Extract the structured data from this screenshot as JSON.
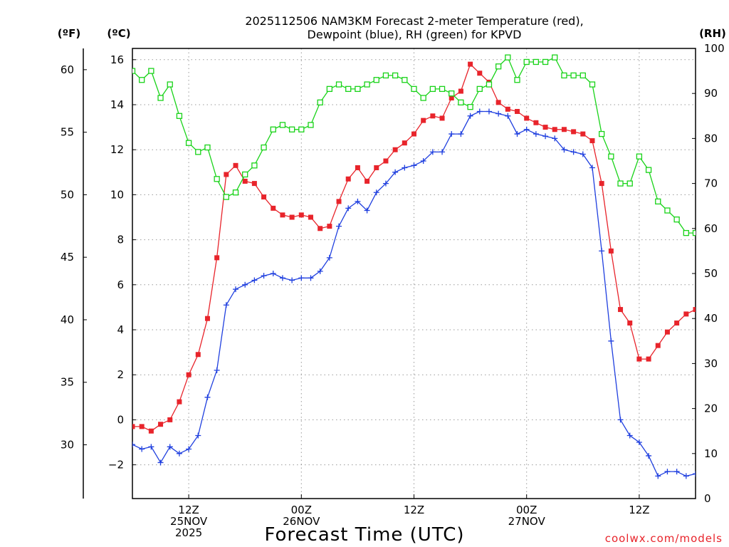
{
  "chart_data": {
    "type": "line",
    "title_line1": "2025112506 NAM3KM Forecast 2-meter Temperature (red),",
    "title_line2": "Dewpoint (blue), RH (green) for KPVD",
    "xlabel": "Forecast Time (UTC)",
    "credit": "coolwx.com/models",
    "unit_f": "(ºF)",
    "unit_c": "(ºC)",
    "unit_rh": "(RH)",
    "x_hours_range": [
      0,
      60
    ],
    "ylim_c": [
      -3.5,
      16.5
    ],
    "ylim_rh": [
      0,
      100
    ],
    "left_f_ticks": [
      30,
      35,
      40,
      45,
      50,
      55,
      60
    ],
    "c_ticks": [
      -2,
      0,
      2,
      4,
      6,
      8,
      10,
      12,
      14,
      16
    ],
    "rh_ticks": [
      0,
      10,
      20,
      30,
      40,
      50,
      60,
      70,
      80,
      90,
      100
    ],
    "x_ticks": [
      {
        "hour": 6,
        "lines": [
          "12Z",
          "25NOV",
          "2025"
        ]
      },
      {
        "hour": 18,
        "lines": [
          "00Z",
          "26NOV"
        ]
      },
      {
        "hour": 30,
        "lines": [
          "12Z"
        ]
      },
      {
        "hour": 42,
        "lines": [
          "00Z",
          "27NOV"
        ]
      },
      {
        "hour": 54,
        "lines": [
          "12Z"
        ]
      }
    ],
    "x_hours": [
      0,
      1,
      2,
      3,
      4,
      5,
      6,
      7,
      8,
      9,
      10,
      11,
      12,
      13,
      14,
      15,
      16,
      17,
      18,
      19,
      20,
      21,
      22,
      23,
      24,
      25,
      26,
      27,
      28,
      29,
      30,
      31,
      32,
      33,
      34,
      35,
      36,
      37,
      38,
      39,
      40,
      41,
      42,
      43,
      44,
      45,
      46,
      47,
      48,
      49,
      50,
      51,
      52,
      53,
      54,
      55,
      56,
      57,
      58,
      59,
      60
    ],
    "series": [
      {
        "name": "2-meter Temperature (°C)",
        "color": "#e8242b",
        "marker": "filled-square",
        "axis": "celsius",
        "values": [
          -0.3,
          -0.3,
          -0.5,
          -0.2,
          0.0,
          0.8,
          2.0,
          2.9,
          4.5,
          7.2,
          10.9,
          11.3,
          10.6,
          10.5,
          9.9,
          9.4,
          9.1,
          9.0,
          9.1,
          9.0,
          8.5,
          8.6,
          9.7,
          10.7,
          11.2,
          10.6,
          11.2,
          11.5,
          12.0,
          12.3,
          12.7,
          13.3,
          13.5,
          13.4,
          14.3,
          14.6,
          15.8,
          15.4,
          15.0,
          14.1,
          13.8,
          13.7,
          13.4,
          13.2,
          13.0,
          12.9,
          12.9,
          12.8,
          12.7,
          12.4,
          10.5,
          7.5,
          4.9,
          4.3,
          2.7,
          2.7,
          3.3,
          3.9,
          4.3,
          4.7,
          4.9
        ]
      },
      {
        "name": "Dewpoint (°C)",
        "color": "#1f3fdf",
        "marker": "plus",
        "axis": "celsius",
        "values": [
          -1.1,
          -1.3,
          -1.2,
          -1.9,
          -1.2,
          -1.5,
          -1.3,
          -0.7,
          1.0,
          2.2,
          5.1,
          5.8,
          6.0,
          6.2,
          6.4,
          6.5,
          6.3,
          6.2,
          6.3,
          6.3,
          6.6,
          7.2,
          8.6,
          9.4,
          9.7,
          9.3,
          10.1,
          10.5,
          11.0,
          11.2,
          11.3,
          11.5,
          11.9,
          11.9,
          12.7,
          12.7,
          13.5,
          13.7,
          13.7,
          13.6,
          13.5,
          12.7,
          12.9,
          12.7,
          12.6,
          12.5,
          12.0,
          11.9,
          11.8,
          11.2,
          7.5,
          3.5,
          0.0,
          -0.7,
          -1.0,
          -1.6,
          -2.5,
          -2.3,
          -2.3,
          -2.5,
          -2.4
        ]
      },
      {
        "name": "RH (%)",
        "color": "#18d318",
        "marker": "open-square",
        "axis": "rh",
        "values": [
          95,
          93,
          95,
          89,
          92,
          85,
          79,
          77,
          78,
          71,
          67,
          68,
          72,
          74,
          78,
          82,
          83,
          82,
          82,
          83,
          88,
          91,
          92,
          91,
          91,
          92,
          93,
          94,
          94,
          93,
          91,
          89,
          91,
          91,
          90,
          88,
          87,
          91,
          92,
          96,
          98,
          93,
          97,
          97,
          97,
          98,
          94,
          94,
          94,
          92,
          81,
          76,
          70,
          70,
          76,
          73,
          66,
          64,
          62,
          59,
          59
        ]
      }
    ]
  }
}
